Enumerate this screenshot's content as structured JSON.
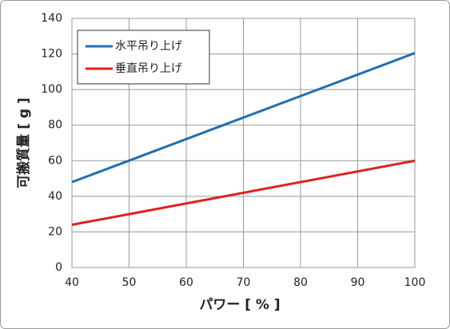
{
  "chart_data": {
    "type": "line",
    "x_label": "パワー [ % ]",
    "y_label": "可搬質量 [ g ]",
    "x": [
      40,
      100
    ],
    "series": [
      {
        "name": "水平吊り上げ",
        "color": "#1f6fb5",
        "values": [
          48,
          120.5
        ]
      },
      {
        "name": "垂直吊り上げ",
        "color": "#e0201b",
        "values": [
          24,
          60
        ]
      }
    ],
    "xlim": [
      40,
      100
    ],
    "xticks": [
      40,
      50,
      60,
      70,
      80,
      90,
      100
    ],
    "ylim": [
      0,
      140
    ],
    "yticks": [
      0,
      20,
      40,
      60,
      80,
      100,
      120,
      140
    ],
    "grid": true,
    "legend": "upper-left"
  }
}
